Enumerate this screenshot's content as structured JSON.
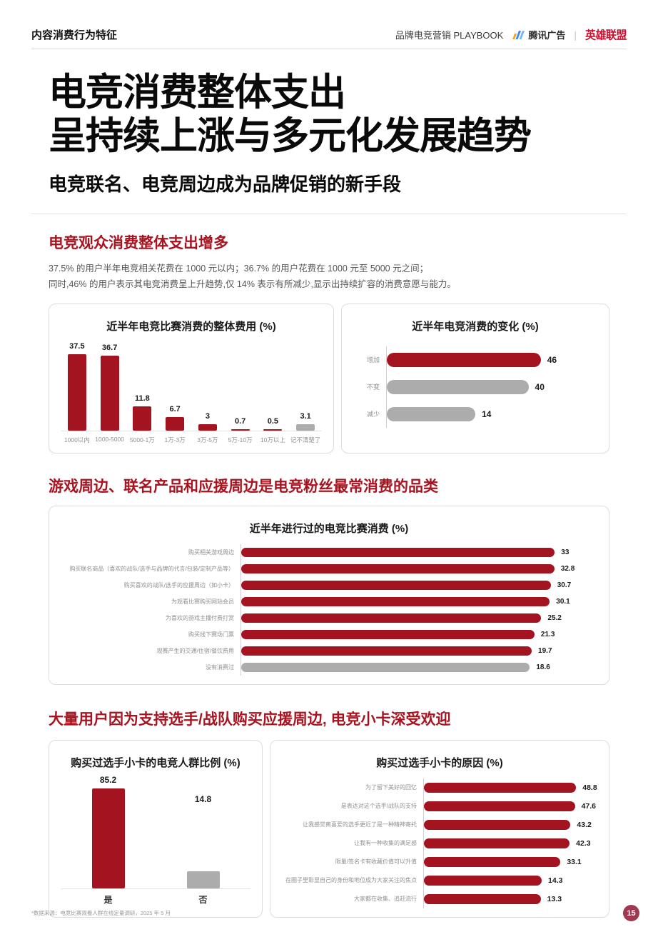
{
  "header": {
    "left": "内容消费行为特征",
    "playbook": "品牌电竞营销 PLAYBOOK",
    "tencent": "腾讯广告",
    "lol": "英雄联盟"
  },
  "hero": {
    "line1": "电竞消费整体支出",
    "line2": "呈持续上涨与多元化发展趋势",
    "subtitle": "电竞联名、电竞周边成为品牌促销的新手段"
  },
  "sections": {
    "s1": {
      "heading": "电竞观众消费整体支出增多",
      "para1": "37.5% 的用户半年电竞相关花费在 1000 元以内；36.7% 的用户花费在 1000 元至 5000 元之间；",
      "para2": "同时,46% 的用户表示其电竞消费呈上升趋势,仅 14% 表示有所减少,显示出持续扩容的消费意愿与能力。"
    },
    "s2": {
      "heading": "游戏周边、联名产品和应援周边是电竞粉丝最常消费的品类"
    },
    "s3": {
      "heading": "大量用户因为支持选手/战队购买应援周边, 电竞小卡深受欢迎"
    }
  },
  "chart_data": [
    {
      "type": "bar",
      "title": "近半年电竞比赛消费的整体费用 (%)",
      "categories": [
        "1000以内",
        "1000-5000",
        "5000-1万",
        "1万-3万",
        "3万-5万",
        "5万-10万",
        "10万以上",
        "记不清楚了"
      ],
      "values": [
        37.5,
        36.7,
        11.8,
        6.7,
        3,
        0.7,
        0.5,
        3.1
      ],
      "bar_colors": [
        "red",
        "red",
        "red",
        "red",
        "red",
        "red",
        "red",
        "gray"
      ],
      "ylim": [
        0,
        40
      ]
    },
    {
      "type": "bar-horizontal",
      "title": "近半年电竞消费的变化 (%)",
      "categories": [
        "增加",
        "不变",
        "减少"
      ],
      "values": [
        46,
        40,
        14
      ],
      "bar_colors": [
        "red",
        "gray",
        "gray"
      ]
    },
    {
      "type": "bar-horizontal",
      "title": "近半年进行过的电竞比赛消费 (%)",
      "categories": [
        "购买相关游戏周边",
        "购买联名商品（喜欢的战队/选手与品牌的代言/包装/定制产品等）",
        "购买喜欢的战队/选手的应援周边（如小卡）",
        "为观看比赛购买网站会员",
        "为喜欢的游戏主播付费打赏",
        "购买线下赛场门票",
        "观赛产生的交通/住宿/餐饮费用",
        "没有消费过"
      ],
      "values": [
        33,
        32.8,
        30.7,
        30.1,
        25.2,
        21.3,
        19.7,
        18.6
      ],
      "bar_colors": [
        "red",
        "red",
        "red",
        "red",
        "red",
        "red",
        "red",
        "gray"
      ]
    },
    {
      "type": "bar",
      "title": "购买过选手小卡的电竞人群比例 (%)",
      "categories": [
        "是",
        "否"
      ],
      "values": [
        85.2,
        14.8
      ],
      "bar_colors": [
        "red",
        "gray"
      ],
      "ylim": [
        0,
        100
      ]
    },
    {
      "type": "bar-horizontal",
      "title": "购买过选手小卡的原因 (%)",
      "categories": [
        "为了留下美好的回忆",
        "是表达对这个选手/战队的支持",
        "让我感觉离喜爱的选手更近了是一种精神寄托",
        "让我有一种收集的满足感",
        "限量/签名卡有收藏价值可以升值",
        "在圈子里彰显自己的身份和地位成为大家关注的焦点",
        "大家都在收集、追赶流行"
      ],
      "values": [
        48.8,
        47.6,
        43.2,
        42.3,
        33.1,
        14.3,
        13.3
      ],
      "bar_colors": [
        "red",
        "red",
        "red",
        "red",
        "red",
        "red",
        "red"
      ]
    }
  ],
  "colors": {
    "bar_red": "#a41420",
    "bar_gray": "#acacac",
    "heading_red": "#a8131f",
    "lol_red": "#ce0e2d"
  },
  "footer": {
    "note": "*数据来源：电竞比赛观看人群在线定量调研，2025 年 5 月",
    "page": "15"
  }
}
